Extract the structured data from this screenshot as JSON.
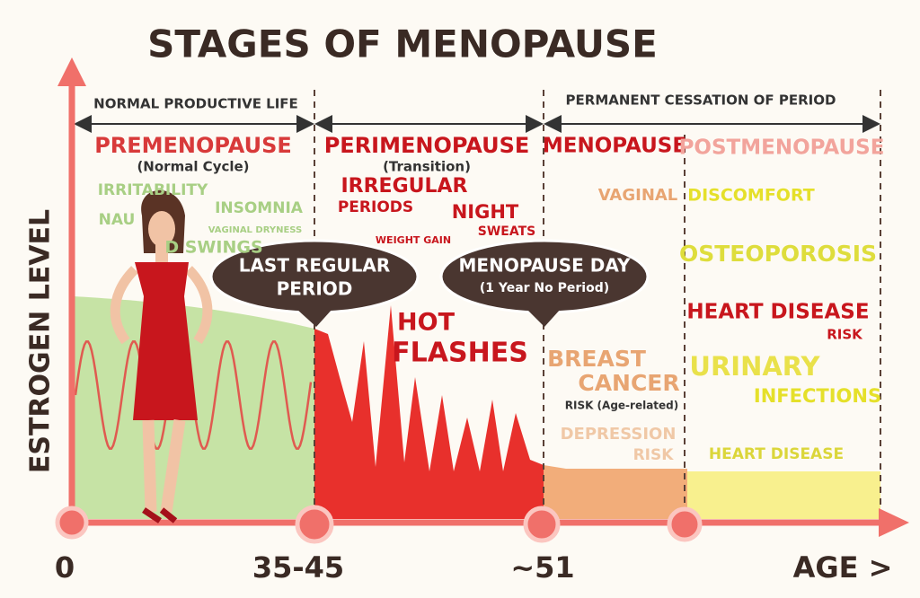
{
  "title": "STAGES OF MENOPAUSE",
  "y_axis_label": "ESTROGEN LEVEL",
  "x_labels": [
    "0",
    "35-45",
    "~51",
    "AGE >"
  ],
  "spans": {
    "normal": "NORMAL PRODUCTIVE LIFE",
    "permanent": "PERMANENT CESSATION OF PERIOD"
  },
  "stages": [
    {
      "name": "PREMENOPAUSE",
      "subtitle": "(Normal Cycle)"
    },
    {
      "name": "PERIMENOPAUSE",
      "subtitle": "(Transition)"
    },
    {
      "name": "MENOPAUSE"
    },
    {
      "name": "POSTMENOPAUSE"
    }
  ],
  "premenopause_symptoms": [
    "IRRITABILITY",
    "INSOMNIA",
    "NAU",
    "VAGINAL DRYNESS",
    "D SWINGS"
  ],
  "perimenopause_symptoms": [
    "IRREGULAR",
    "PERIODS",
    "NIGHT",
    "SWEATS",
    "WEIGHT GAIN",
    "HOT",
    "FLASHES"
  ],
  "menopause_symptoms": [
    "VAGINAL",
    "BREAST",
    "CANCER",
    "RISK (Age-related)",
    "DEPRESSION",
    "RISK"
  ],
  "postmenopause_symptoms": [
    "DISCOMFORT",
    "OSTEOPOROSIS",
    "HEART DISEASE",
    "RISK",
    "URINARY",
    "INFECTIONS",
    "HEART DISEASE"
  ],
  "callouts": [
    {
      "lines": [
        "LAST REGULAR",
        "PERIOD"
      ]
    },
    {
      "lines": [
        "MENOPAUSE DAY",
        "(1 Year No Period)"
      ]
    }
  ]
}
